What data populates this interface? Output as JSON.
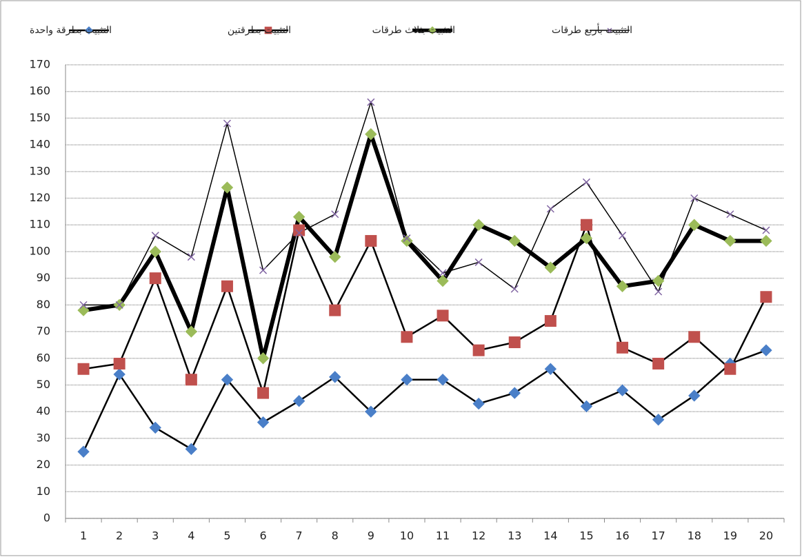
{
  "chart_data": {
    "type": "line",
    "categories": [
      1,
      2,
      3,
      4,
      5,
      6,
      7,
      8,
      9,
      10,
      11,
      12,
      13,
      14,
      15,
      16,
      17,
      18,
      19,
      20
    ],
    "series": [
      {
        "name": "التثبيت بطرقة واحدة",
        "color": "#4a7fc8",
        "marker": "diamond",
        "line_width": 2.5,
        "values": [
          25,
          54,
          34,
          26,
          52,
          36,
          44,
          53,
          40,
          52,
          52,
          43,
          47,
          56,
          42,
          48,
          37,
          46,
          58,
          63
        ]
      },
      {
        "name": "التثبيت بطرقتين",
        "color": "#c0504d",
        "marker": "square",
        "line_width": 2.5,
        "values": [
          56,
          58,
          90,
          52,
          87,
          47,
          108,
          78,
          104,
          68,
          76,
          63,
          66,
          74,
          110,
          64,
          58,
          68,
          56,
          83
        ]
      },
      {
        "name": "التثبيت بثلاث طرقات",
        "color": "#9bbb59",
        "marker": "diamond",
        "line_width": 6,
        "values": [
          78,
          80,
          100,
          70,
          124,
          60,
          113,
          98,
          144,
          104,
          89,
          110,
          104,
          94,
          105,
          87,
          89,
          110,
          104,
          104
        ]
      },
      {
        "name": "التثبيت بأربع طرقات",
        "color": "#8064a2",
        "marker": "x",
        "line_width": 1.5,
        "values": [
          80,
          80,
          106,
          98,
          148,
          93,
          107,
          114,
          156,
          105,
          92,
          96,
          86,
          116,
          126,
          106,
          85,
          120,
          114,
          108
        ]
      }
    ],
    "ylim": [
      0,
      170
    ],
    "yticks": [
      0,
      10,
      20,
      30,
      40,
      50,
      60,
      70,
      80,
      90,
      100,
      110,
      120,
      130,
      140,
      150,
      160,
      170
    ],
    "grid": true,
    "legend": "top"
  }
}
